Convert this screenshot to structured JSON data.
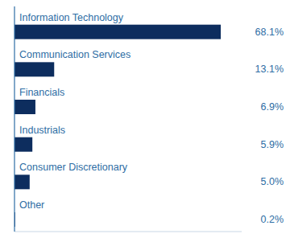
{
  "chart_data": {
    "type": "bar",
    "orientation": "horizontal",
    "categories": [
      "Information Technology",
      "Communication Services",
      "Financials",
      "Industrials",
      "Consumer Discretionary",
      "Other"
    ],
    "values": [
      68.1,
      13.1,
      6.9,
      5.9,
      5.0,
      0.2
    ],
    "value_labels": [
      "68.1%",
      "13.1%",
      "6.9%",
      "5.9%",
      "5.0%",
      "0.2%"
    ],
    "data_labels": true,
    "color": "#0d2d5e",
    "xlim": [
      0,
      75
    ],
    "tick_labels": false
  }
}
